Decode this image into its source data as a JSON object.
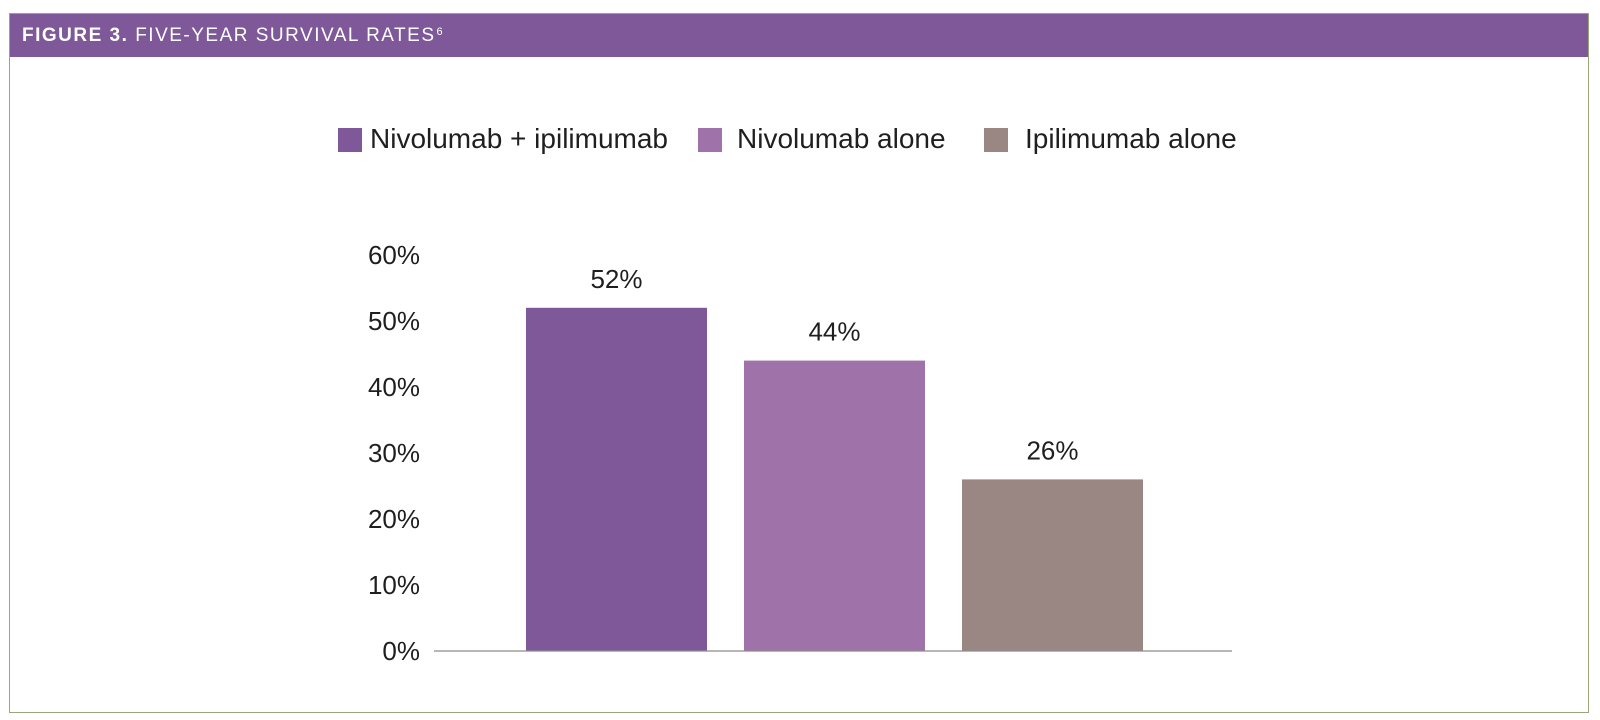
{
  "figure": {
    "label": "FIGURE 3.",
    "title": "FIVE-YEAR SURVIVAL RATES",
    "superscript": "6"
  },
  "colors": {
    "header": "#7e5899",
    "border": "#9aa77a",
    "axis": "#8c8c8c",
    "text": "#1f1f1f"
  },
  "chart_data": {
    "type": "bar",
    "title": "FIVE-YEAR SURVIVAL RATES",
    "xlabel": "",
    "ylabel": "",
    "ylim": [
      0,
      60
    ],
    "yticks": [
      0,
      10,
      20,
      30,
      40,
      50,
      60
    ],
    "ytick_labels": [
      "0%",
      "10%",
      "20%",
      "30%",
      "40%",
      "50%",
      "60%"
    ],
    "grid": false,
    "legend_position": "top-center",
    "series": [
      {
        "name": "Nivolumab + ipilimumab",
        "value": 52,
        "label": "52%",
        "color": "#7e5899"
      },
      {
        "name": "Nivolumab alone",
        "value": 44,
        "label": "44%",
        "color": "#9f72a9"
      },
      {
        "name": "Ipilimumab alone",
        "value": 26,
        "label": "26%",
        "color": "#9a8683"
      }
    ]
  }
}
